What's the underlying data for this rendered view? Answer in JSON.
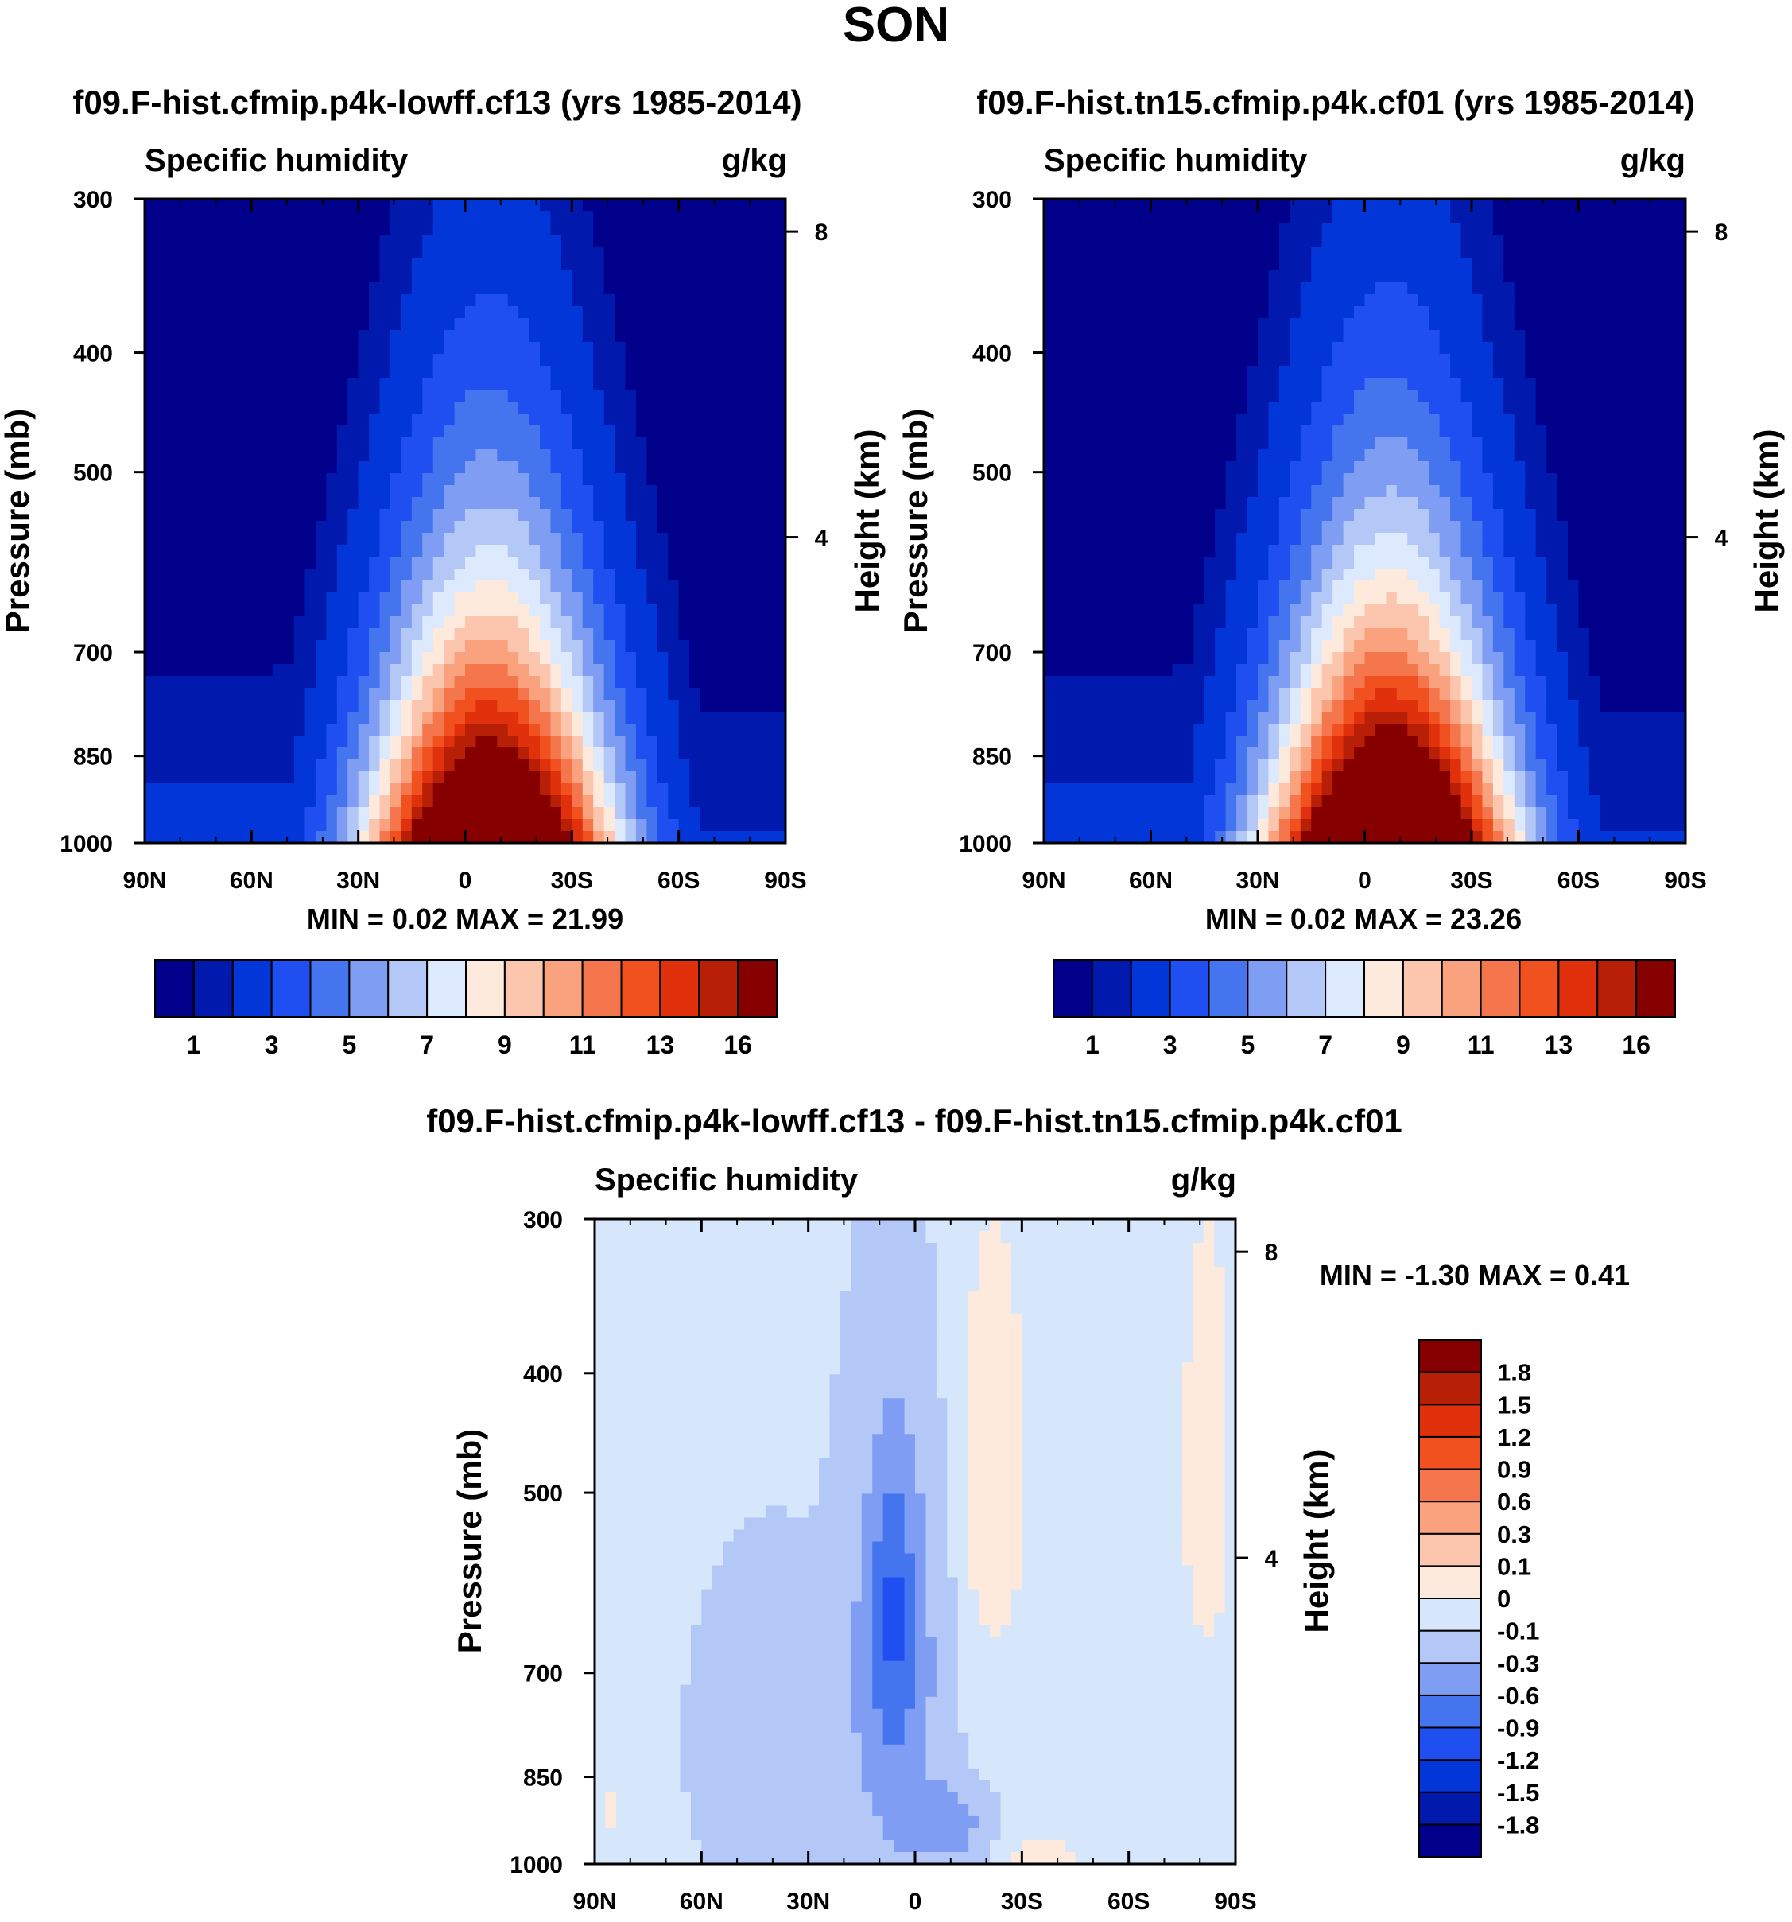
{
  "figure_title": "SON",
  "colors": {
    "abs_scale": [
      "#00008b",
      "#0219ad",
      "#0336d9",
      "#1f4ff0",
      "#4474ee",
      "#7e9df3",
      "#b4c8f8",
      "#dde9fc",
      "#fdeadd",
      "#fbc6ad",
      "#f9a27d",
      "#f5764c",
      "#f1501f",
      "#e0300c",
      "#b71f06",
      "#870000"
    ],
    "diff_scale": [
      "#00008b",
      "#0219ad",
      "#0336d9",
      "#1f4ff0",
      "#4474ee",
      "#7e9df3",
      "#b4c8f8",
      "#d6e6fb",
      "#fdeadd",
      "#fbc6ad",
      "#f9a27d",
      "#f5764c",
      "#f1501f",
      "#e0300c",
      "#b71f06",
      "#870000"
    ]
  },
  "chart_data": [
    {
      "type": "heatmap",
      "title": "f09.F-hist.cfmip.p4k-lowff.cf13 (yrs 1985-2014)",
      "left_string": "Specific humidity",
      "right_string": "g/kg",
      "ylabel": "Pressure (mb)",
      "ylabel_right": "Height (km)",
      "x_ticks": [
        "90N",
        "60N",
        "30N",
        "0",
        "30S",
        "60S",
        "90S"
      ],
      "x_values": [
        90,
        60,
        30,
        0,
        -30,
        -60,
        -90
      ],
      "y_ticks": [
        "300",
        "400",
        "500",
        "700",
        "850",
        "1000"
      ],
      "y_values": [
        300,
        400,
        500,
        700,
        850,
        1000
      ],
      "y_right_ticks": [
        "8",
        "4"
      ],
      "y_right_values": [
        8,
        4
      ],
      "ylim": [
        1000,
        300
      ],
      "xlim": [
        90,
        -90
      ],
      "min_max": "MIN =   0.02  MAX =  21.99",
      "colorbar_labels": [
        "1",
        "3",
        "5",
        "7",
        "9",
        "11",
        "13",
        "16"
      ],
      "contour_levels": [
        0.5,
        1,
        2,
        3,
        4,
        5,
        6,
        7,
        8,
        9,
        10,
        11,
        12,
        13,
        14,
        16
      ],
      "peak_lat": -7,
      "peak_value": 21.99
    },
    {
      "type": "heatmap",
      "title": "f09.F-hist.tn15.cfmip.p4k.cf01 (yrs 1985-2014)",
      "left_string": "Specific humidity",
      "right_string": "g/kg",
      "ylabel": "Pressure (mb)",
      "ylabel_right": "Height (km)",
      "x_ticks": [
        "90N",
        "60N",
        "30N",
        "0",
        "30S",
        "60S",
        "90S"
      ],
      "x_values": [
        90,
        60,
        30,
        0,
        -30,
        -60,
        -90
      ],
      "y_ticks": [
        "300",
        "400",
        "500",
        "700",
        "850",
        "1000"
      ],
      "y_values": [
        300,
        400,
        500,
        700,
        850,
        1000
      ],
      "y_right_ticks": [
        "8",
        "4"
      ],
      "y_right_values": [
        8,
        4
      ],
      "ylim": [
        1000,
        300
      ],
      "xlim": [
        90,
        -90
      ],
      "min_max": "MIN =   0.02  MAX =  23.26",
      "colorbar_labels": [
        "1",
        "3",
        "5",
        "7",
        "9",
        "11",
        "13",
        "16"
      ],
      "contour_levels": [
        0.5,
        1,
        2,
        3,
        4,
        5,
        6,
        7,
        8,
        9,
        10,
        11,
        12,
        13,
        14,
        16
      ],
      "peak_lat": -7,
      "peak_value": 23.26
    },
    {
      "type": "heatmap",
      "title": "f09.F-hist.cfmip.p4k-lowff.cf13 - f09.F-hist.tn15.cfmip.p4k.cf01",
      "left_string": "Specific humidity",
      "right_string": "g/kg",
      "ylabel": "Pressure (mb)",
      "ylabel_right": "Height (km)",
      "x_ticks": [
        "90N",
        "60N",
        "30N",
        "0",
        "30S",
        "60S",
        "90S"
      ],
      "x_values": [
        90,
        60,
        30,
        0,
        -30,
        -60,
        -90
      ],
      "y_ticks": [
        "300",
        "400",
        "500",
        "700",
        "850",
        "1000"
      ],
      "y_values": [
        300,
        400,
        500,
        700,
        850,
        1000
      ],
      "y_right_ticks": [
        "8",
        "4"
      ],
      "y_right_values": [
        8,
        4
      ],
      "ylim": [
        1000,
        300
      ],
      "xlim": [
        90,
        -90
      ],
      "min_max": "MIN =  -1.30  MAX =   0.41",
      "colorbar_labels": [
        "1.8",
        "1.5",
        "1.2",
        "0.9",
        "0.6",
        "0.3",
        "0.1",
        "0",
        "-0.1",
        "-0.3",
        "-0.6",
        "-0.9",
        "-1.2",
        "-1.5",
        "-1.8"
      ],
      "contour_levels": [
        -1.8,
        -1.5,
        -1.2,
        -0.9,
        -0.6,
        -0.3,
        -0.1,
        0,
        0.1,
        0.3,
        0.6,
        0.9,
        1.2,
        1.5,
        1.8
      ]
    }
  ]
}
